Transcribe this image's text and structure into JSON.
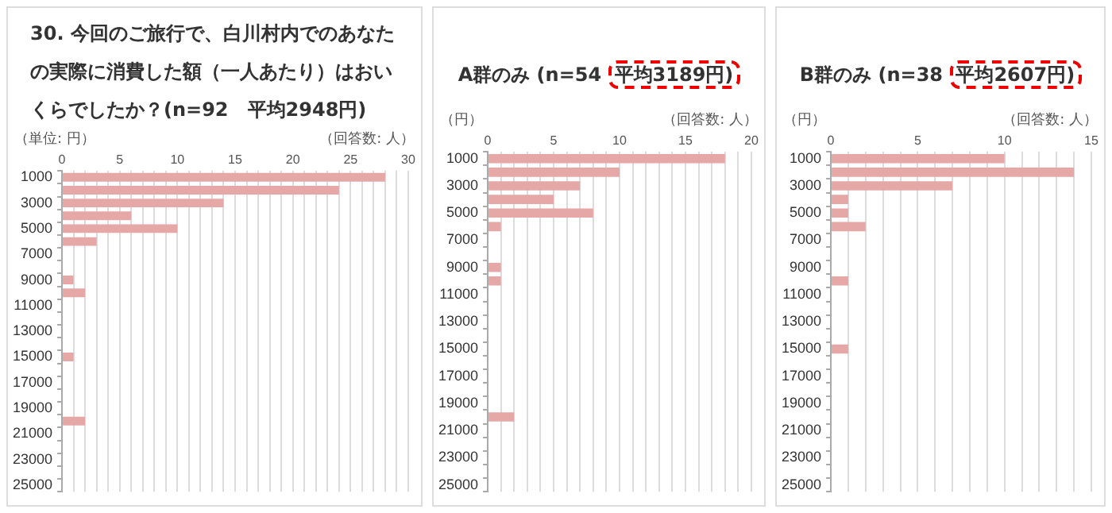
{
  "chart_data": [
    {
      "type": "bar",
      "orientation": "horizontal",
      "title": "30. 今回のご旅行で、白川村内でのあなたの実際に消費した額（一人あたり）はおいくらでしたか？(n=92　平均2948円)",
      "xlabel": "（回答数: 人）",
      "ylabel": "（単位: 円）",
      "categories": [
        "1000",
        null,
        "3000",
        null,
        "5000",
        null,
        "7000",
        null,
        "9000",
        null,
        "11000",
        null,
        "13000",
        null,
        "15000",
        null,
        "17000",
        null,
        "19000",
        null,
        "21000",
        null,
        "23000",
        null,
        "25000"
      ],
      "color": "#e6a7a7",
      "values": [
        28,
        24,
        14,
        6,
        10,
        3,
        0,
        0,
        1,
        2,
        0,
        0,
        0,
        0,
        1,
        0,
        0,
        0,
        0,
        2,
        0,
        0,
        0,
        0,
        0
      ],
      "xlim": [
        0,
        30
      ],
      "xticks": [
        0,
        {
          "value": 1,
          "label": null
        },
        {
          "value": 2,
          "label": null
        },
        {
          "value": 3,
          "label": null
        },
        {
          "value": 4,
          "label": null
        },
        5,
        {
          "value": 6,
          "label": null
        },
        {
          "value": 7,
          "label": null
        },
        {
          "value": 8,
          "label": null
        },
        {
          "value": 9,
          "label": null
        },
        10,
        {
          "value": 11,
          "label": null
        },
        {
          "value": 12,
          "label": null
        },
        {
          "value": 13,
          "label": null
        },
        {
          "value": 14,
          "label": null
        },
        15,
        {
          "value": 16,
          "label": null
        },
        {
          "value": 17,
          "label": null
        },
        {
          "value": 18,
          "label": null
        },
        {
          "value": 19,
          "label": null
        },
        20,
        {
          "value": 21,
          "label": null
        },
        {
          "value": 22,
          "label": null
        },
        {
          "value": 23,
          "label": null
        },
        {
          "value": 24,
          "label": null
        },
        25,
        {
          "value": 26,
          "label": null
        },
        {
          "value": 27,
          "label": null
        },
        {
          "value": 28,
          "label": null
        },
        {
          "value": 29,
          "label": null
        },
        30
      ],
      "grid": "x"
    },
    {
      "type": "bar",
      "orientation": "horizontal",
      "title": "A群のみ (n=54 平均3189円)",
      "xlabel": "（回答数: 人）",
      "ylabel": "（円）",
      "categories": [
        "1000",
        null,
        "3000",
        null,
        "5000",
        null,
        "7000",
        null,
        "9000",
        null,
        "11000",
        null,
        "13000",
        null,
        "15000",
        null,
        "17000",
        null,
        "19000",
        null,
        "21000",
        null,
        "23000",
        null,
        "25000"
      ],
      "color": "#e6a7a7",
      "values": [
        18,
        10,
        7,
        5,
        8,
        1,
        0,
        0,
        1,
        1,
        0,
        0,
        0,
        0,
        0,
        0,
        0,
        0,
        0,
        2,
        0,
        0,
        0,
        0,
        0
      ],
      "xlim": [
        0,
        20
      ],
      "xticks": [
        0,
        {
          "value": 1,
          "label": null
        },
        {
          "value": 2,
          "label": null
        },
        {
          "value": 3,
          "label": null
        },
        {
          "value": 4,
          "label": null
        },
        5,
        {
          "value": 6,
          "label": null
        },
        {
          "value": 7,
          "label": null
        },
        {
          "value": 8,
          "label": null
        },
        {
          "value": 9,
          "label": null
        },
        10,
        {
          "value": 11,
          "label": null
        },
        {
          "value": 12,
          "label": null
        },
        {
          "value": 13,
          "label": null
        },
        {
          "value": 14,
          "label": null
        },
        15,
        {
          "value": 16,
          "label": null
        },
        {
          "value": 17,
          "label": null
        },
        {
          "value": 18,
          "label": null
        },
        {
          "value": 19,
          "label": null
        },
        20
      ],
      "grid": "x"
    },
    {
      "type": "bar",
      "orientation": "horizontal",
      "title": "B群のみ (n=38 平均2607円)",
      "xlabel": "（回答数: 人）",
      "ylabel": "（円）",
      "categories": [
        "1000",
        null,
        "3000",
        null,
        "5000",
        null,
        "7000",
        null,
        "9000",
        null,
        "11000",
        null,
        "13000",
        null,
        "15000",
        null,
        "17000",
        null,
        "19000",
        null,
        "21000",
        null,
        "23000",
        null,
        "25000"
      ],
      "color": "#e6a7a7",
      "values": [
        10,
        14,
        7,
        1,
        1,
        2,
        0,
        0,
        0,
        1,
        0,
        0,
        0,
        0,
        1,
        0,
        0,
        0,
        0,
        0,
        0,
        0,
        0,
        0,
        0
      ],
      "xlim": [
        0,
        15
      ],
      "xticks": [
        0,
        {
          "value": 1,
          "label": null
        },
        {
          "value": 2,
          "label": null
        },
        {
          "value": 3,
          "label": null
        },
        {
          "value": 4,
          "label": null
        },
        5,
        {
          "value": 6,
          "label": null
        },
        {
          "value": 7,
          "label": null
        },
        {
          "value": 8,
          "label": null
        },
        {
          "value": 9,
          "label": null
        },
        10,
        {
          "value": 11,
          "label": null
        },
        {
          "value": 12,
          "label": null
        },
        {
          "value": 13,
          "label": null
        },
        {
          "value": 14,
          "label": null
        },
        15
      ],
      "grid": "x"
    }
  ]
}
